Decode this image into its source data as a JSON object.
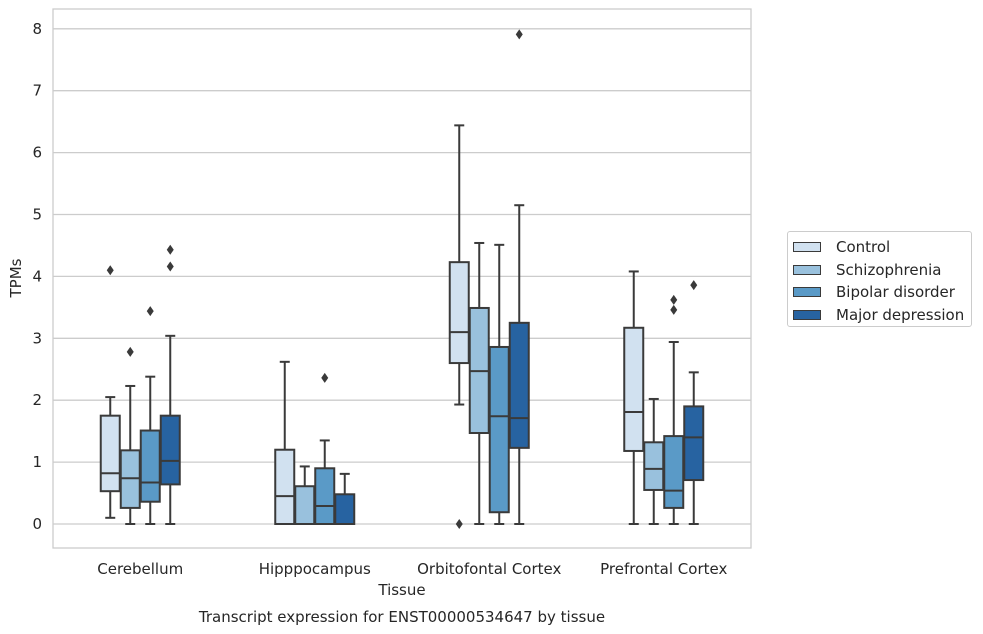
{
  "chart_data": {
    "type": "box",
    "caption": "Transcript expression for ENST00000534647 by tissue",
    "xlabel": "Tissue",
    "ylabel": "TPMs",
    "ylim": [
      -0.4,
      8.3
    ],
    "yticks": [
      0,
      1,
      2,
      3,
      4,
      5,
      6,
      7,
      8
    ],
    "grid": "horizontal",
    "legend_position": "right",
    "categories": [
      "Cerebellum",
      "Hipppocampus",
      "Orbitofontal Cortex",
      "Prefrontal Cortex"
    ],
    "series": [
      {
        "name": "Control",
        "color": "#d1e1f0",
        "boxes": [
          {
            "whisker_low": 0.1,
            "q1": 0.53,
            "median": 0.82,
            "q3": 1.75,
            "whisker_high": 2.05,
            "outliers": [
              4.1
            ]
          },
          {
            "whisker_low": 0.0,
            "q1": 0.0,
            "median": 0.45,
            "q3": 1.2,
            "whisker_high": 2.62,
            "outliers": []
          },
          {
            "whisker_low": 1.93,
            "q1": 2.6,
            "median": 3.1,
            "q3": 4.23,
            "whisker_high": 6.44,
            "outliers": [
              0.0
            ]
          },
          {
            "whisker_low": 0.0,
            "q1": 1.18,
            "median": 1.81,
            "q3": 3.17,
            "whisker_high": 4.08,
            "outliers": []
          }
        ]
      },
      {
        "name": "Schizophrenia",
        "color": "#99c1dd",
        "boxes": [
          {
            "whisker_low": 0.0,
            "q1": 0.26,
            "median": 0.74,
            "q3": 1.19,
            "whisker_high": 2.23,
            "outliers": [
              2.78
            ]
          },
          {
            "whisker_low": 0.0,
            "q1": 0.0,
            "median": 0.0,
            "q3": 0.61,
            "whisker_high": 0.93,
            "outliers": []
          },
          {
            "whisker_low": 0.0,
            "q1": 1.47,
            "median": 2.47,
            "q3": 3.49,
            "whisker_high": 4.54,
            "outliers": []
          },
          {
            "whisker_low": 0.0,
            "q1": 0.55,
            "median": 0.89,
            "q3": 1.32,
            "whisker_high": 2.02,
            "outliers": []
          }
        ]
      },
      {
        "name": "Bipolar disorder",
        "color": "#5a9ac7",
        "boxes": [
          {
            "whisker_low": 0.0,
            "q1": 0.36,
            "median": 0.67,
            "q3": 1.51,
            "whisker_high": 2.38,
            "outliers": [
              3.44
            ]
          },
          {
            "whisker_low": 0.0,
            "q1": 0.0,
            "median": 0.29,
            "q3": 0.9,
            "whisker_high": 1.35,
            "outliers": [
              2.36
            ]
          },
          {
            "whisker_low": 0.0,
            "q1": 0.19,
            "median": 1.74,
            "q3": 2.86,
            "whisker_high": 4.51,
            "outliers": []
          },
          {
            "whisker_low": 0.0,
            "q1": 0.26,
            "median": 0.54,
            "q3": 1.42,
            "whisker_high": 2.94,
            "outliers": [
              3.46,
              3.62
            ]
          }
        ]
      },
      {
        "name": "Major depression",
        "color": "#2763a1",
        "boxes": [
          {
            "whisker_low": 0.0,
            "q1": 0.64,
            "median": 1.02,
            "q3": 1.75,
            "whisker_high": 3.04,
            "outliers": [
              4.16,
              4.43
            ]
          },
          {
            "whisker_low": 0.0,
            "q1": 0.0,
            "median": 0.0,
            "q3": 0.48,
            "whisker_high": 0.81,
            "outliers": []
          },
          {
            "whisker_low": 0.0,
            "q1": 1.23,
            "median": 1.71,
            "q3": 3.25,
            "whisker_high": 5.15,
            "outliers": [
              7.91
            ]
          },
          {
            "whisker_low": 0.0,
            "q1": 0.71,
            "median": 1.4,
            "q3": 1.9,
            "whisker_high": 2.45,
            "outliers": [
              3.86
            ]
          }
        ]
      }
    ]
  }
}
